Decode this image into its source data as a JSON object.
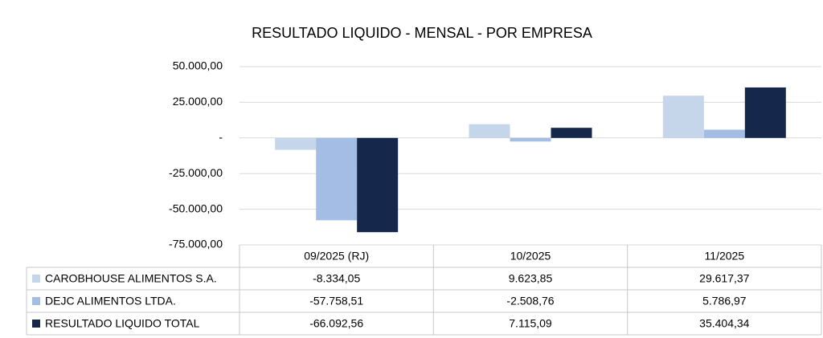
{
  "chart_data": {
    "type": "bar",
    "title": "RESULTADO LIQUIDO - MENSAL - POR EMPRESA",
    "categories": [
      "09/2025 (RJ)",
      "10/2025",
      "11/2025"
    ],
    "series": [
      {
        "name": "CAROBHOUSE ALIMENTOS S.A.",
        "color": "#c5d5ea",
        "values": [
          -8334.05,
          9623.85,
          29617.37
        ],
        "value_labels": [
          "-8.334,05",
          "9.623,85",
          "29.617,37"
        ]
      },
      {
        "name": "DEJC ALIMENTOS LTDA.",
        "color": "#a4bde4",
        "values": [
          -57758.51,
          -2508.76,
          5786.97
        ],
        "value_labels": [
          "-57.758,51",
          "-2.508,76",
          "5.786,97"
        ]
      },
      {
        "name": "RESULTADO LIQUIDO TOTAL",
        "color": "#15284b",
        "values": [
          -66092.56,
          7115.09,
          35404.34
        ],
        "value_labels": [
          "-66.092,56",
          "7.115,09",
          "35.404,34"
        ]
      }
    ],
    "ylim": [
      -75000,
      50000
    ],
    "yticks": [
      {
        "value": -75000,
        "label": "-75.000,00"
      },
      {
        "value": -50000,
        "label": "-50.000,00"
      },
      {
        "value": -25000,
        "label": "-25.000,00"
      },
      {
        "value": 0,
        "label": "-"
      },
      {
        "value": 25000,
        "label": "25.000,00"
      },
      {
        "value": 50000,
        "label": "50.000,00"
      }
    ],
    "grid": true
  }
}
